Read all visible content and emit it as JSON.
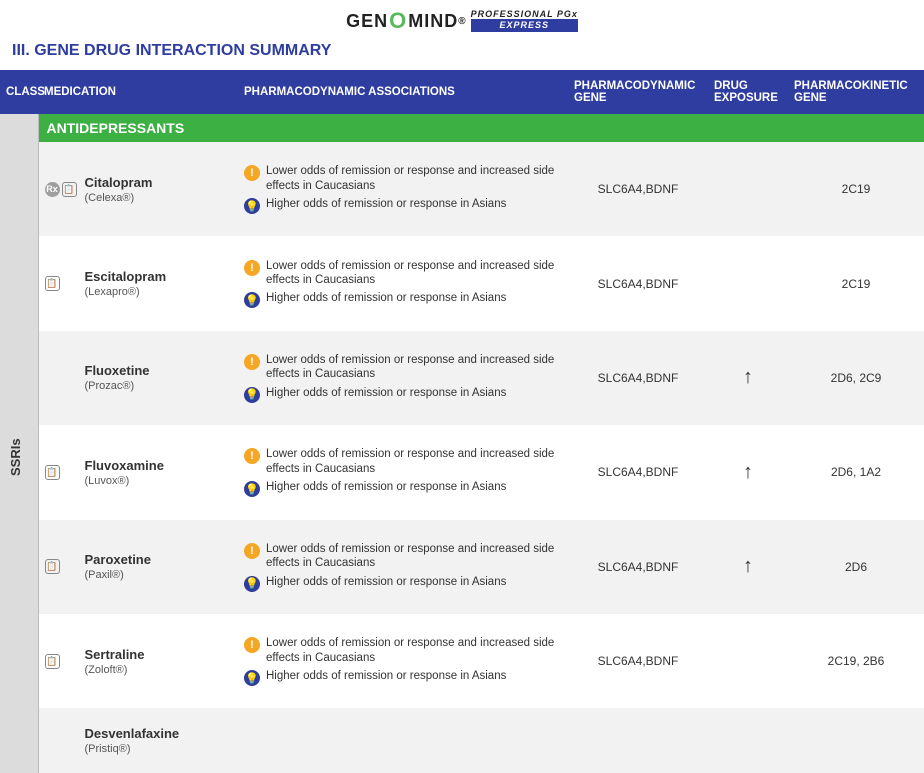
{
  "logo": {
    "pre": "GEN",
    "o": "O",
    "post": "MIND",
    "reg": "®",
    "sub1": "PROFESSIONAL PGx",
    "sub2": "EXPRESS"
  },
  "section_title": "III.   GENE DRUG INTERACTION SUMMARY",
  "headers": {
    "class": "CLASS",
    "medication": "MEDICATION",
    "assoc": "PHARMACODYNAMIC ASSOCIATIONS",
    "pdgene": "PHARMACODYNAMIC GENE",
    "exposure": "DRUG EXPOSURE",
    "pkgene": "PHARMACOKINETIC GENE"
  },
  "category": "ANTIDEPRESSANTS",
  "class_label": "SSRIs",
  "assoc_texts": {
    "warn": "Lower odds of remission or response and increased side effects in Caucasians",
    "info": "Higher odds of remission or response in Asians"
  },
  "rows": [
    {
      "rx": true,
      "note": true,
      "name": "Citalopram",
      "brand": "(Celexa®)",
      "pdgene": "SLC6A4,BDNF",
      "exposure": "",
      "pkgene": "2C19"
    },
    {
      "rx": false,
      "note": true,
      "name": "Escitalopram",
      "brand": "(Lexapro®)",
      "pdgene": "SLC6A4,BDNF",
      "exposure": "",
      "pkgene": "2C19"
    },
    {
      "rx": false,
      "note": false,
      "name": "Fluoxetine",
      "brand": "(Prozac®)",
      "pdgene": "SLC6A4,BDNF",
      "exposure": "↑",
      "pkgene": "2D6, 2C9"
    },
    {
      "rx": false,
      "note": true,
      "name": "Fluvoxamine",
      "brand": "(Luvox®)",
      "pdgene": "SLC6A4,BDNF",
      "exposure": "↑",
      "pkgene": "2D6, 1A2"
    },
    {
      "rx": false,
      "note": true,
      "name": "Paroxetine",
      "brand": "(Paxil®)",
      "pdgene": "SLC6A4,BDNF",
      "exposure": "↑",
      "pkgene": "2D6"
    },
    {
      "rx": false,
      "note": true,
      "name": "Sertraline",
      "brand": "(Zoloft®)",
      "pdgene": "SLC6A4,BDNF",
      "exposure": "",
      "pkgene": "2C19, 2B6"
    }
  ],
  "partial_row": {
    "name": "Desvenlafaxine",
    "brand": "(Pristiq®)"
  }
}
